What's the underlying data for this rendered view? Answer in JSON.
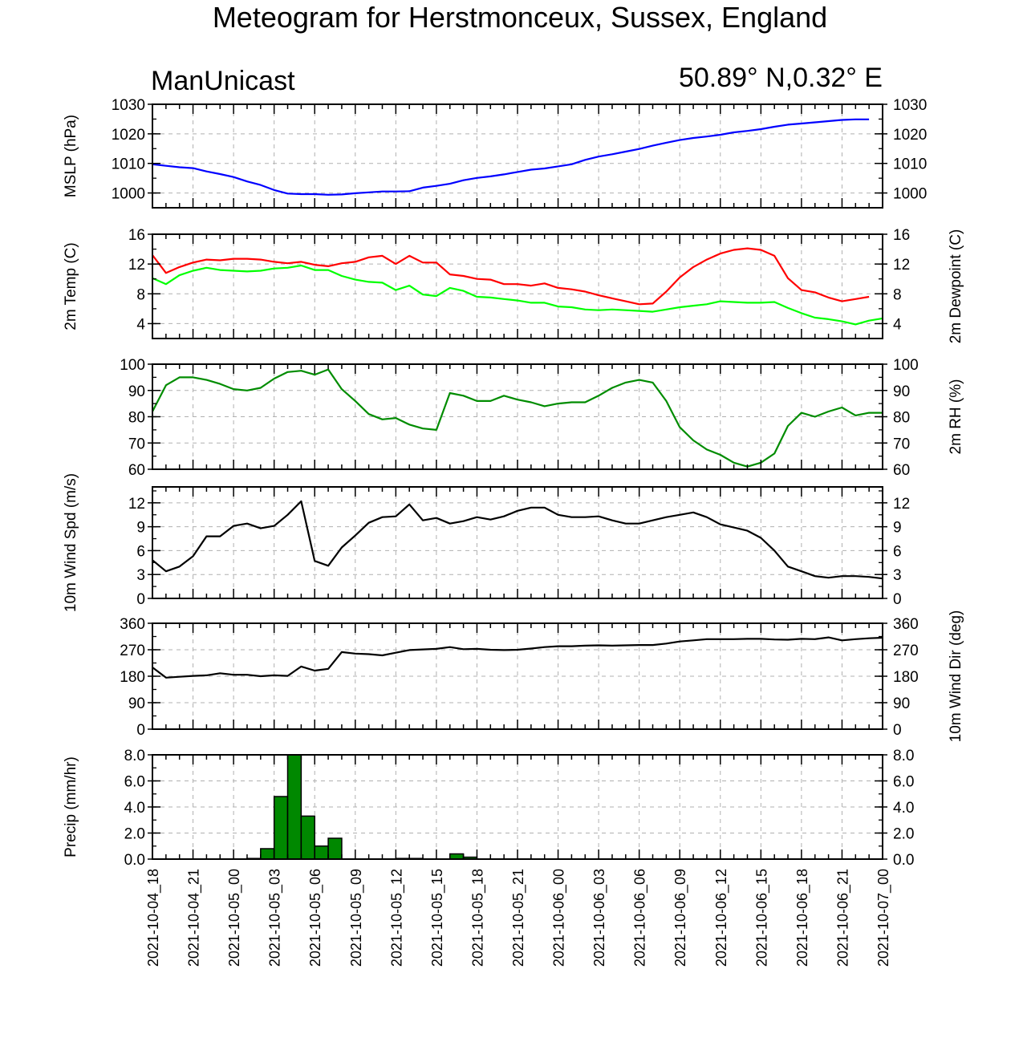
{
  "title": "Meteogram for Herstmonceux, Sussex, England",
  "model": "ManUnicast",
  "location": "50.89° N,0.32° E",
  "x_tick_labels": [
    "2021-10-04_18",
    "2021-10-04_21",
    "2021-10-05_00",
    "2021-10-05_03",
    "2021-10-05_06",
    "2021-10-05_09",
    "2021-10-05_12",
    "2021-10-05_15",
    "2021-10-05_18",
    "2021-10-05_21",
    "2021-10-06_00",
    "2021-10-06_03",
    "2021-10-06_06",
    "2021-10-06_09",
    "2021-10-06_12",
    "2021-10-06_15",
    "2021-10-06_18",
    "2021-10-06_21",
    "2021-10-07_00"
  ],
  "colors": {
    "mslp": "#0000ff",
    "temp": "#ff0000",
    "dewpoint": "#00ff00",
    "rh": "#008c00",
    "wind": "#000000",
    "precip": "#008800",
    "grid": "#b0b0b0"
  },
  "chart_data": [
    {
      "type": "line",
      "ylabel": "MSLP (hPa)",
      "ylim": [
        995,
        1030
      ],
      "yticks": [
        1000,
        1010,
        1020,
        1030
      ],
      "yticks_right": true,
      "xlim": [
        0,
        54
      ],
      "series": [
        {
          "color_key": "mslp",
          "values": [
            1009.7,
            1009.2,
            1008.7,
            1008.4,
            1007.3,
            1006.4,
            1005.4,
            1003.9,
            1002.7,
            1001.0,
            999.8,
            999.6,
            999.6,
            999.4,
            999.5,
            999.9,
            1000.2,
            1000.5,
            1000.5,
            1000.6,
            1001.8,
            1002.4,
            1003.1,
            1004.3,
            1005.1,
            1005.6,
            1006.3,
            1007.1,
            1007.9,
            1008.3,
            1009.0,
            1009.7,
            1011.2,
            1012.3,
            1013.1,
            1014.0,
            1014.9,
            1016.0,
            1017.0,
            1017.9,
            1018.6,
            1019.1,
            1019.7,
            1020.5,
            1021.0,
            1021.6,
            1022.4,
            1023.1,
            1023.5,
            1023.9,
            1024.3,
            1024.7,
            1024.9,
            1024.9
          ]
        }
      ]
    },
    {
      "type": "line",
      "ylabel": "2m Temp (C)",
      "ylabel_right": "2m Dewpoint (C)",
      "ylim": [
        2,
        16
      ],
      "yticks": [
        4,
        8,
        12,
        16
      ],
      "yticks_right": true,
      "xlim": [
        0,
        54
      ],
      "series": [
        {
          "color_key": "temp",
          "values": [
            13.2,
            10.8,
            11.6,
            12.2,
            12.6,
            12.5,
            12.7,
            12.7,
            12.6,
            12.3,
            12.1,
            12.3,
            11.9,
            11.7,
            12.1,
            12.3,
            12.9,
            13.1,
            12.0,
            13.1,
            12.2,
            12.2,
            10.6,
            10.4,
            10.0,
            9.9,
            9.3,
            9.3,
            9.1,
            9.4,
            8.8,
            8.6,
            8.3,
            7.8,
            7.4,
            7.0,
            6.6,
            6.7,
            8.3,
            10.2,
            11.6,
            12.6,
            13.4,
            13.9,
            14.1,
            13.9,
            13.1,
            10.1,
            8.5,
            8.2,
            7.5,
            7.0,
            7.3,
            7.6
          ]
        },
        {
          "color_key": "dewpoint",
          "values": [
            10.1,
            9.3,
            10.5,
            11.1,
            11.5,
            11.2,
            11.1,
            11.0,
            11.1,
            11.4,
            11.5,
            11.8,
            11.2,
            11.2,
            10.4,
            9.9,
            9.6,
            9.5,
            8.5,
            9.1,
            7.9,
            7.7,
            8.8,
            8.4,
            7.6,
            7.5,
            7.3,
            7.1,
            6.8,
            6.8,
            6.3,
            6.2,
            5.9,
            5.8,
            5.9,
            5.8,
            5.7,
            5.6,
            5.9,
            6.2,
            6.4,
            6.6,
            7.0,
            6.9,
            6.8,
            6.8,
            6.9,
            6.1,
            5.4,
            4.8,
            4.6,
            4.3,
            3.9,
            4.4,
            4.7
          ]
        }
      ]
    },
    {
      "type": "line",
      "ylabel_right": "2m RH (%)",
      "ylim": [
        60,
        100
      ],
      "yticks": [
        60,
        70,
        80,
        90,
        100
      ],
      "yticks_right": true,
      "xlim": [
        0,
        54
      ],
      "series": [
        {
          "color_key": "rh",
          "values": [
            82,
            92,
            95,
            95,
            94,
            92.5,
            90.5,
            90,
            91,
            94.5,
            97,
            97.5,
            96,
            98,
            90.5,
            86,
            81,
            79,
            79.5,
            77,
            75.5,
            75,
            89,
            88,
            86,
            86,
            88,
            86.5,
            85.5,
            84,
            85,
            85.5,
            85.5,
            88,
            91,
            93,
            94,
            93,
            86,
            76,
            71,
            67.5,
            65.5,
            62.5,
            61,
            62.5,
            66,
            76.5,
            81.5,
            80,
            82,
            83.5,
            80.5,
            81.5,
            81.5
          ]
        }
      ]
    },
    {
      "type": "line",
      "ylabel": "10m Wind Spd (m/s)",
      "ylim": [
        0,
        14
      ],
      "yticks": [
        0,
        3,
        6,
        9,
        12
      ],
      "yticks_right": true,
      "xlim": [
        0,
        54
      ],
      "series": [
        {
          "color_key": "wind",
          "values": [
            4.8,
            3.4,
            4.0,
            5.3,
            7.8,
            7.8,
            9.1,
            9.4,
            8.8,
            9.1,
            10.5,
            12.2,
            4.7,
            4.1,
            6.4,
            7.9,
            9.5,
            10.2,
            10.3,
            11.8,
            9.8,
            10.1,
            9.4,
            9.7,
            10.2,
            9.9,
            10.3,
            11.0,
            11.4,
            11.4,
            10.5,
            10.2,
            10.2,
            10.3,
            9.8,
            9.4,
            9.4,
            9.8,
            10.2,
            10.5,
            10.8,
            10.2,
            9.3,
            8.9,
            8.5,
            7.6,
            6.0,
            4.0,
            3.4,
            2.8,
            2.6,
            2.8,
            2.8,
            2.7,
            2.5
          ]
        }
      ]
    },
    {
      "type": "line",
      "ylabel_right": "10m Wind Dir (deg)",
      "ylim": [
        0,
        360
      ],
      "yticks": [
        0,
        90,
        180,
        270,
        360
      ],
      "yticks_right": true,
      "xlim": [
        0,
        54
      ],
      "series": [
        {
          "color_key": "wind",
          "values": [
            210,
            175,
            178,
            181,
            183,
            190,
            185,
            185,
            180,
            183,
            181,
            213,
            199,
            205,
            262,
            257,
            255,
            251,
            260,
            269,
            271,
            273,
            279,
            272,
            273,
            270,
            269,
            270,
            274,
            279,
            282,
            282,
            284,
            285,
            284,
            285,
            286,
            286,
            291,
            298,
            302,
            306,
            306,
            306,
            307,
            307,
            305,
            304,
            307,
            306,
            312,
            302,
            306,
            309,
            311
          ]
        }
      ]
    },
    {
      "type": "bar",
      "ylabel": "Precip (mm/hr)",
      "ylim": [
        0,
        8
      ],
      "yticks": [
        0.0,
        2.0,
        4.0,
        6.0,
        8.0
      ],
      "ytick_format": "0.0",
      "yticks_right": true,
      "xlim": [
        0,
        54
      ],
      "x": [
        7,
        8,
        9,
        10,
        11,
        12,
        13,
        14,
        15,
        16,
        17,
        18,
        19,
        20,
        21,
        22,
        23
      ],
      "values": [
        0.05,
        0.8,
        4.8,
        8.0,
        3.3,
        1.0,
        1.6,
        0.0,
        0.0,
        0.0,
        0.0,
        0.05,
        0.05,
        0.0,
        0.0,
        0.4,
        0.15
      ]
    }
  ]
}
